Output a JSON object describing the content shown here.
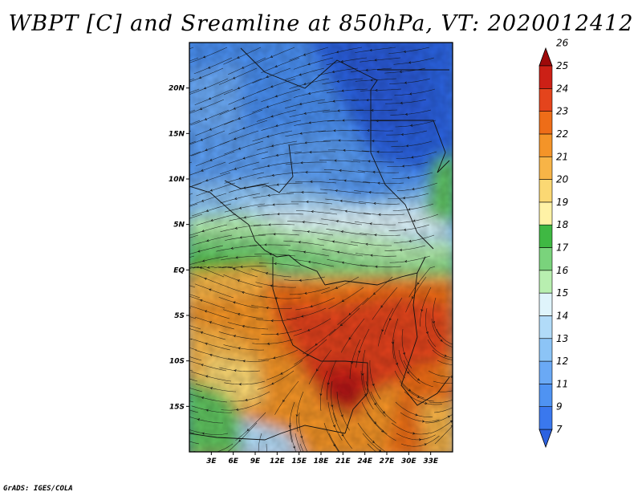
{
  "title": "WBPT [C] and Sreamline at 850hPa, VT: 2020012412",
  "credit": "GrADS: IGES/COLA",
  "chart_data": {
    "type": "heatmap",
    "variable": "WBPT [C]",
    "overlay": "Streamline",
    "level": "850hPa",
    "valid_time": "2020012412",
    "lon_range": [
      0,
      36
    ],
    "lat_range": [
      -20,
      25
    ],
    "x_ticks": [
      {
        "lon": 3,
        "label": "3E"
      },
      {
        "lon": 6,
        "label": "6E"
      },
      {
        "lon": 9,
        "label": "9E"
      },
      {
        "lon": 12,
        "label": "12E"
      },
      {
        "lon": 15,
        "label": "15E"
      },
      {
        "lon": 18,
        "label": "18E"
      },
      {
        "lon": 21,
        "label": "21E"
      },
      {
        "lon": 24,
        "label": "24E"
      },
      {
        "lon": 27,
        "label": "27E"
      },
      {
        "lon": 30,
        "label": "30E"
      },
      {
        "lon": 33,
        "label": "33E"
      }
    ],
    "y_ticks": [
      {
        "lat": 20,
        "label": "20N"
      },
      {
        "lat": 15,
        "label": "15N"
      },
      {
        "lat": 10,
        "label": "10N"
      },
      {
        "lat": 5,
        "label": "5N"
      },
      {
        "lat": 0,
        "label": "EQ"
      },
      {
        "lat": -5,
        "label": "5S"
      },
      {
        "lat": -10,
        "label": "10S"
      },
      {
        "lat": -15,
        "label": "15S"
      }
    ],
    "colorbar": {
      "levels": [
        "7",
        "9",
        "11",
        "12",
        "13",
        "14",
        "15",
        "16",
        "17",
        "18",
        "19",
        "20",
        "21",
        "22",
        "23",
        "24",
        "25",
        "26"
      ],
      "colors": [
        "#2c62e0",
        "#3a78ee",
        "#4f93f2",
        "#6aa9f5",
        "#8cc4f6",
        "#b1dbf8",
        "#dff4fb",
        "#b8efb0",
        "#7ad37c",
        "#3fb843",
        "#fff2a6",
        "#fbd873",
        "#f7b447",
        "#f49428",
        "#ee6d18",
        "#e4441c",
        "#cc2016",
        "#9e0a0a"
      ]
    },
    "fields": {
      "cold_north": "WBPT 7-13C over Sahel/Sahara (north of ~8N)",
      "warm_south": "WBPT 22-26C over Congo basin, max near 21E 13S"
    }
  }
}
